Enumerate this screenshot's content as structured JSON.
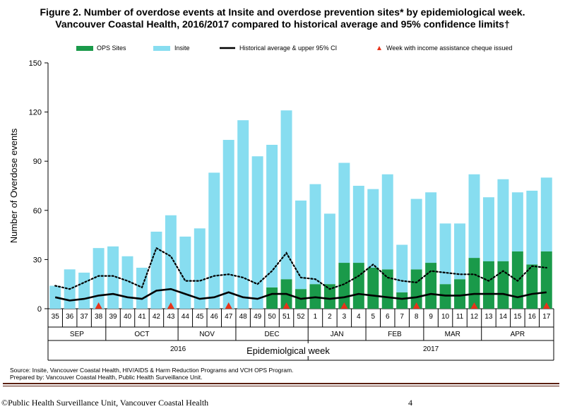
{
  "title_line1": "Figure 2. Number of overdose events at Insite and overdose prevention sites* by epidemiological week.",
  "title_line2": "Vancouver Coastal Health, 2016/2017 compared to historical average and 95% confidence limits†",
  "colors": {
    "ops": "#1a9a4a",
    "insite": "#87ddf0",
    "historical": "#000000",
    "cheque": "#e8331a"
  },
  "chart_data": {
    "type": "bar",
    "stacked": true,
    "title": "Number of overdose events at Insite and overdose prevention sites* by epidemiological week. Vancouver Coastal Health, 2016/2017 compared to historical average and 95% confidence limits†",
    "xlabel": "Epidemiolgical week",
    "ylabel": "Number of Overdose events",
    "ylim": [
      0,
      150
    ],
    "yticks": [
      0,
      30,
      60,
      90,
      120,
      150
    ],
    "categories": [
      "35",
      "36",
      "37",
      "38",
      "39",
      "40",
      "41",
      "42",
      "43",
      "44",
      "45",
      "46",
      "47",
      "48",
      "49",
      "50",
      "51",
      "52",
      "1",
      "2",
      "3",
      "4",
      "5",
      "6",
      "7",
      "8",
      "9",
      "10",
      "11",
      "12",
      "13",
      "14",
      "15",
      "16",
      "17"
    ],
    "legend": [
      {
        "key": "ops",
        "label": "OPS Sites"
      },
      {
        "key": "insite",
        "label": "Insite"
      },
      {
        "key": "historical",
        "label": "Historical average & upper 95% CI"
      },
      {
        "key": "cheque",
        "label": "Week with income assistance cheque issued"
      }
    ],
    "series": [
      {
        "name": "OPS Sites",
        "type": "bar",
        "values": [
          0,
          0,
          0,
          0,
          0,
          0,
          0,
          0,
          0,
          0,
          0,
          0,
          0,
          0,
          0,
          13,
          18,
          12,
          15,
          15,
          28,
          28,
          25,
          24,
          10,
          24,
          28,
          15,
          18,
          31,
          29,
          29,
          35,
          27,
          35
        ]
      },
      {
        "name": "Insite",
        "type": "bar",
        "values": [
          14,
          24,
          22,
          37,
          38,
          32,
          25,
          47,
          57,
          44,
          49,
          83,
          103,
          115,
          93,
          87,
          103,
          54,
          61,
          43,
          61,
          47,
          48,
          58,
          29,
          43,
          43,
          37,
          34,
          51,
          39,
          50,
          36,
          45,
          45
        ]
      },
      {
        "name": "Historical average",
        "type": "line",
        "values": [
          7,
          5,
          6,
          8,
          9,
          7,
          6,
          11,
          12,
          9,
          6,
          7,
          10,
          7,
          6,
          9,
          9,
          6,
          7,
          6,
          7,
          9,
          8,
          7,
          6,
          7,
          9,
          8,
          8,
          9,
          9,
          9,
          7,
          9,
          10
        ]
      },
      {
        "name": "Upper 95% CI",
        "type": "line",
        "style": "dotted",
        "values": [
          14,
          12,
          16,
          20,
          20,
          17,
          13,
          37,
          32,
          17,
          17,
          20,
          21,
          19,
          15,
          23,
          34,
          19,
          18,
          12,
          15,
          20,
          27,
          19,
          17,
          16,
          23,
          22,
          21,
          21,
          17,
          23,
          17,
          26,
          25
        ]
      }
    ],
    "cheque_weeks": [
      "38",
      "43",
      "47",
      "51",
      "3",
      "8",
      "12",
      "17"
    ],
    "months": [
      {
        "label": "SEP",
        "start": 0,
        "end": 3
      },
      {
        "label": "OCT",
        "start": 4,
        "end": 8
      },
      {
        "label": "NOV",
        "start": 9,
        "end": 12
      },
      {
        "label": "DEC",
        "start": 13,
        "end": 17
      },
      {
        "label": "JAN",
        "start": 18,
        "end": 21
      },
      {
        "label": "FEB",
        "start": 22,
        "end": 25
      },
      {
        "label": "MAR",
        "start": 26,
        "end": 29
      },
      {
        "label": "APR",
        "start": 30,
        "end": 34
      }
    ],
    "years": [
      {
        "label": "2016",
        "start": 0,
        "end": 17
      },
      {
        "label": "2017",
        "start": 18,
        "end": 34
      }
    ]
  },
  "source_line1": "Source: Insite, Vancouver Coastal Health, HIV/AIDS & Harm Reduction Programs and VCH OPS Program.",
  "source_line2": "Prepared by: Vancouver Coastal Health, Public Health Surveillance Unit.",
  "footer_left": "©Public Health Surveillance Unit, Vancouver Coastal Health",
  "footer_page": "4"
}
